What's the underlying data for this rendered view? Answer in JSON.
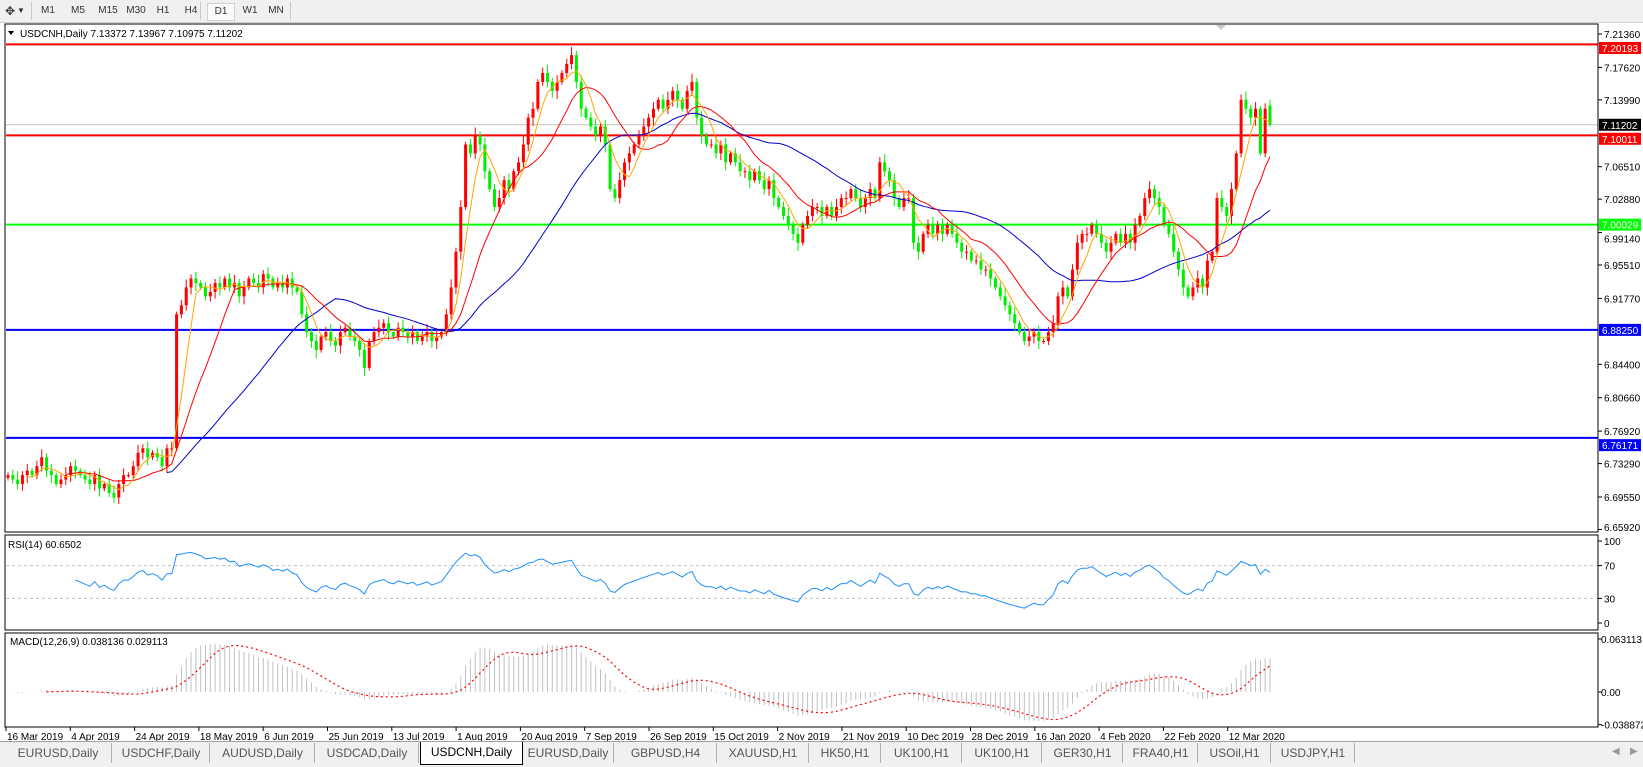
{
  "toolbar": {
    "timeframes": [
      "M1",
      "M5",
      "M15",
      "M30",
      "H1",
      "H4",
      "D1",
      "W1",
      "MN"
    ],
    "active_timeframe": "D1",
    "icons": [
      "crosshair-tools-icon",
      "dropdown-arrow-icon"
    ]
  },
  "chart": {
    "header": "USDCNH,Daily  7.13372 7.13967 7.10975 7.11202",
    "symbol": "USDCNH",
    "period": "Daily",
    "colors": {
      "bull": "#ff0000",
      "bear": "#00ee00",
      "ma_fast": "#ffa500",
      "ma_mid": "#ff0000",
      "ma_slow": "#0000cc",
      "rsi": "#1e90ff",
      "macd_hist": "#c0c0c0",
      "macd_signal": "#ff0000"
    },
    "price_ticks": [
      "7.21360",
      "7.17620",
      "7.13990",
      "7.06510",
      "7.02880",
      "6.99140",
      "6.95510",
      "6.91770",
      "6.84400",
      "6.80660",
      "6.76920",
      "6.73290",
      "6.69550",
      "6.65920"
    ],
    "hlines": [
      {
        "price": 7.20193,
        "label": "7.20193",
        "color": "#ff0000"
      },
      {
        "price": 7.10011,
        "label": "7.10011",
        "color": "#ff0000"
      },
      {
        "price": 7.00029,
        "label": "7.00029",
        "color": "#00ff00"
      },
      {
        "price": 6.8825,
        "label": "6.88250",
        "color": "#0000ff"
      },
      {
        "price": 6.76171,
        "label": "6.76171",
        "color": "#0000ff"
      }
    ],
    "current_price": {
      "price": 7.11202,
      "label": "7.11202"
    },
    "date_labels": [
      "16 Mar 2019",
      "4 Apr 2019",
      "24 Apr 2019",
      "18 May 2019",
      "6 Jun 2019",
      "25 Jun 2019",
      "13 Jul 2019",
      "1 Aug 2019",
      "20 Aug 2019",
      "7 Sep 2019",
      "26 Sep 2019",
      "15 Oct 2019",
      "2 Nov 2019",
      "21 Nov 2019",
      "10 Dec 2019",
      "28 Dec 2019",
      "16 Jan 2020",
      "4 Feb 2020",
      "22 Feb 2020",
      "12 Mar 2020"
    ],
    "rsi": {
      "label": "RSI(14) 60.6502",
      "ticks": [
        "100",
        "70",
        "30",
        "0"
      ],
      "levels": [
        70,
        30
      ]
    },
    "macd": {
      "label": "MACD(12,26,9) 0.038136 0.029113",
      "ticks": [
        "0.063113",
        "0.00",
        "-0.038872"
      ]
    }
  },
  "chart_data": {
    "type": "candlestick",
    "ylim": [
      6.6592,
      7.2136
    ],
    "last_bar": {
      "open": 7.13372,
      "high": 7.13967,
      "low": 7.10975,
      "close": 7.11202
    },
    "closes": [
      6.72,
      6.715,
      6.71,
      6.72,
      6.725,
      6.72,
      6.73,
      6.74,
      6.725,
      6.72,
      6.71,
      6.715,
      6.72,
      6.73,
      6.725,
      6.72,
      6.715,
      6.71,
      6.72,
      6.705,
      6.71,
      6.7,
      6.695,
      6.71,
      6.72,
      6.72,
      6.73,
      6.745,
      6.75,
      6.74,
      6.745,
      6.74,
      6.73,
      6.75,
      6.75,
      6.9,
      6.91,
      6.93,
      6.94,
      6.935,
      6.93,
      6.92,
      6.925,
      6.935,
      6.93,
      6.94,
      6.93,
      6.935,
      6.92,
      6.93,
      6.94,
      6.935,
      6.93,
      6.945,
      6.94,
      6.93,
      6.935,
      6.93,
      6.94,
      6.93,
      6.925,
      6.9,
      6.88,
      6.87,
      6.86,
      6.875,
      6.88,
      6.87,
      6.865,
      6.88,
      6.885,
      6.875,
      6.87,
      6.86,
      6.84,
      6.87,
      6.88,
      6.885,
      6.89,
      6.88,
      6.875,
      6.885,
      6.88,
      6.875,
      6.88,
      6.87,
      6.875,
      6.88,
      6.87,
      6.875,
      6.88,
      6.9,
      6.93,
      6.97,
      7.02,
      7.09,
      7.08,
      7.1,
      7.09,
      7.06,
      7.04,
      7.02,
      7.03,
      7.05,
      7.04,
      7.06,
      7.07,
      7.09,
      7.12,
      7.13,
      7.16,
      7.17,
      7.16,
      7.15,
      7.16,
      7.17,
      7.18,
      7.19,
      7.16,
      7.13,
      7.12,
      7.11,
      7.1,
      7.11,
      7.09,
      7.04,
      7.03,
      7.05,
      7.07,
      7.08,
      7.09,
      7.1,
      7.11,
      7.12,
      7.13,
      7.14,
      7.13,
      7.14,
      7.15,
      7.14,
      7.13,
      7.15,
      7.16,
      7.12,
      7.1,
      7.09,
      7.09,
      7.08,
      7.09,
      7.07,
      7.08,
      7.07,
      7.06,
      7.06,
      7.05,
      7.06,
      7.05,
      7.04,
      7.05,
      7.03,
      7.02,
      7.01,
      7.0,
      6.99,
      6.98,
      7.0,
      7.01,
      7.02,
      7.02,
      7.01,
      7.02,
      7.01,
      7.02,
      7.03,
      7.03,
      7.04,
      7.03,
      7.02,
      7.03,
      7.04,
      7.03,
      7.07,
      7.06,
      7.05,
      7.03,
      7.02,
      7.03,
      7.03,
      6.98,
      6.97,
      6.99,
      7.0,
      6.99,
      7.0,
      6.99,
      7.0,
      6.99,
      6.98,
      6.97,
      6.97,
      6.96,
      6.96,
      6.95,
      6.95,
      6.94,
      6.93,
      6.92,
      6.91,
      6.9,
      6.89,
      6.88,
      6.87,
      6.875,
      6.88,
      6.87,
      6.87,
      6.88,
      6.89,
      6.92,
      6.93,
      6.92,
      6.95,
      6.98,
      6.99,
      6.99,
      7.0,
      6.99,
      6.98,
      6.97,
      6.98,
      6.99,
      6.98,
      6.99,
      6.98,
      7.0,
      7.01,
      7.03,
      7.04,
      7.03,
      7.02,
      7.0,
      6.99,
      6.97,
      6.95,
      6.93,
      6.92,
      6.93,
      6.94,
      6.93,
      6.96,
      6.97,
      7.03,
      7.02,
      7.01,
      7.04,
      7.08,
      7.14,
      7.13,
      7.12,
      7.13,
      7.08,
      7.13,
      7.11202
    ]
  },
  "tabs": {
    "items": [
      "EURUSD,Daily",
      "USDCHF,Daily",
      "AUDUSD,Daily",
      "USDCAD,Daily",
      "USDCNH,Daily",
      "EURUSD,Daily",
      "GBPUSD,H4",
      "XAUUSD,H1",
      "HK50,H1",
      "UK100,H1",
      "UK100,H1",
      "GER30,H1",
      "FRA40,H1",
      "USOil,H1",
      "USDJPY,H1"
    ],
    "active": "USDCNH,Daily"
  }
}
